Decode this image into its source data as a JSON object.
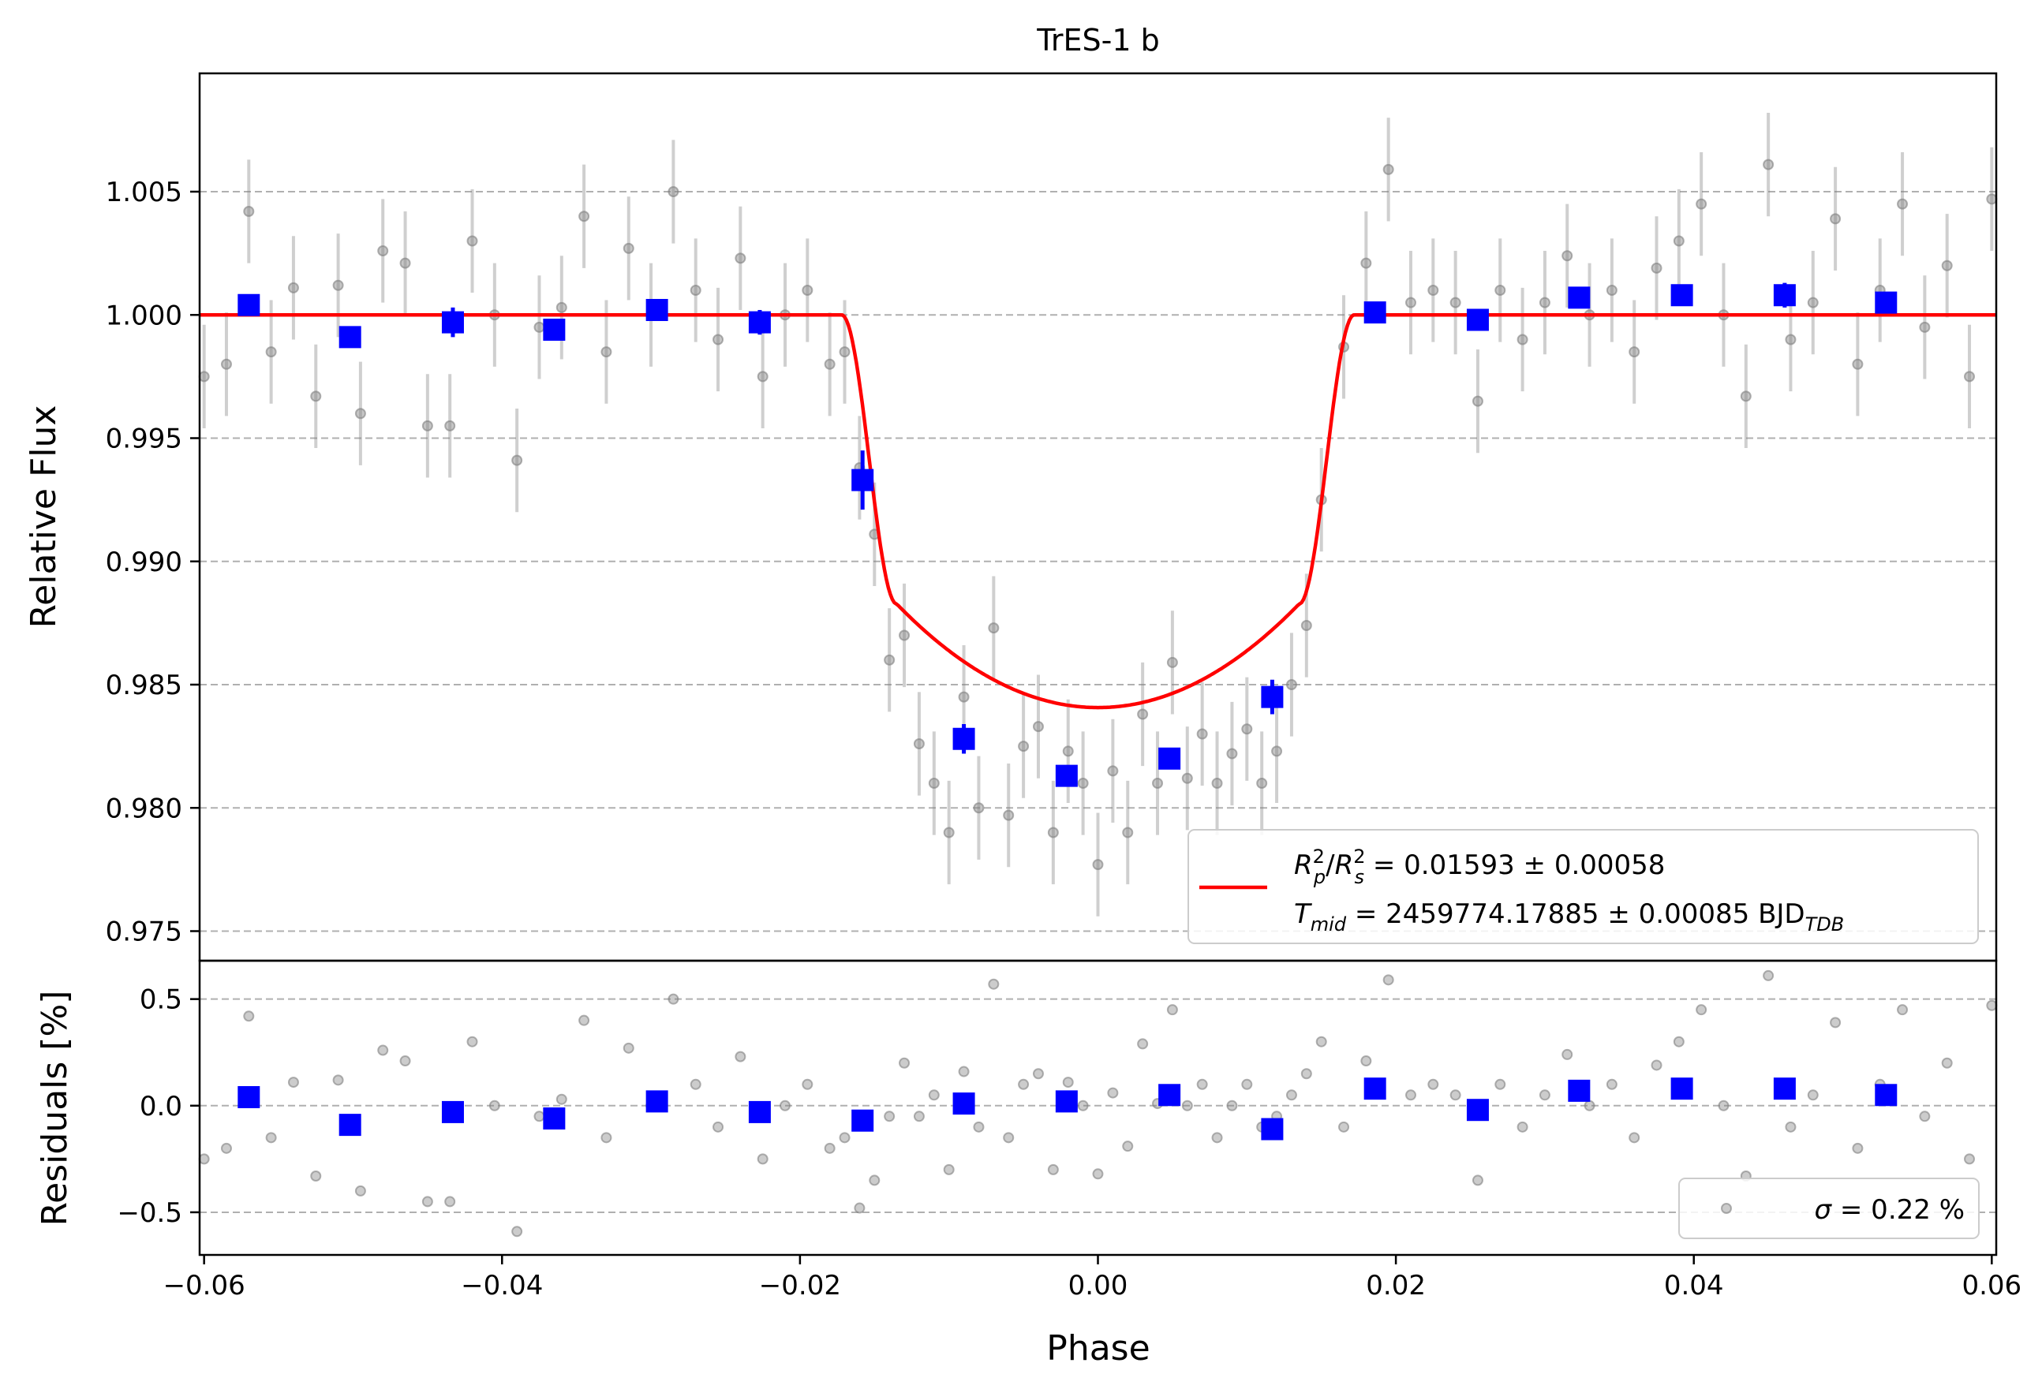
{
  "chart_data": [
    {
      "type": "scatter",
      "title": "TrES-1 b",
      "ylabel": "Relative Flux",
      "xlim": [
        -0.0603,
        0.0603
      ],
      "ylim": [
        0.9738,
        1.0098
      ],
      "grid": "horizontal dashed",
      "xticks": [
        -0.06,
        -0.04,
        -0.02,
        0.0,
        0.02,
        0.04,
        0.06
      ],
      "xtick_labels": [
        "−0.06",
        "−0.04",
        "−0.02",
        "0.00",
        "0.02",
        "0.04",
        "0.06"
      ],
      "yticks": [
        0.975,
        0.98,
        0.985,
        0.99,
        0.995,
        1.0,
        1.005
      ],
      "ytick_labels": [
        "0.975",
        "0.980",
        "0.985",
        "0.990",
        "0.995",
        "1.000",
        "1.005"
      ],
      "legend_position": "lower-right",
      "legend": {
        "line1_a": "R",
        "line1_a_sup": "2",
        "line1_a_sub": "p",
        "line1_sep": "/",
        "line1_b": "R",
        "line1_b_sup": "2",
        "line1_b_sub": "s",
        "line1_value": " = 0.01593 ± 0.00058",
        "line2_a": "T",
        "line2_a_sub": "mid",
        "line2_value": " = 2459774.17885 ± 0.00085 BJD",
        "line2_value_sub": "TDB"
      },
      "model": {
        "color": "#ff0000",
        "depth": 0.01593,
        "baseline": 1.0,
        "t_contact_outer": 0.0172,
        "t_contact_inner": 0.0135,
        "limb_curvature": 0.0042
      },
      "raw_points": {
        "color": "#808080",
        "x": [
          -0.06,
          -0.0585,
          -0.057,
          -0.0555,
          -0.054,
          -0.0525,
          -0.051,
          -0.0495,
          -0.048,
          -0.0465,
          -0.045,
          -0.0435,
          -0.042,
          -0.0405,
          -0.039,
          -0.0375,
          -0.036,
          -0.0345,
          -0.033,
          -0.0315,
          -0.03,
          -0.0285,
          -0.027,
          -0.0255,
          -0.024,
          -0.0225,
          -0.021,
          -0.0195,
          -0.018,
          -0.017,
          -0.016,
          -0.015,
          -0.014,
          -0.013,
          -0.012,
          -0.011,
          -0.01,
          -0.009,
          -0.008,
          -0.007,
          -0.006,
          -0.005,
          -0.004,
          -0.003,
          -0.002,
          -0.001,
          0.0,
          0.001,
          0.002,
          0.003,
          0.004,
          0.005,
          0.006,
          0.007,
          0.008,
          0.009,
          0.01,
          0.011,
          0.012,
          0.013,
          0.014,
          0.015,
          0.0165,
          0.018,
          0.0195,
          0.021,
          0.0225,
          0.024,
          0.0255,
          0.027,
          0.0285,
          0.03,
          0.0315,
          0.033,
          0.0345,
          0.036,
          0.0375,
          0.039,
          0.0405,
          0.042,
          0.0435,
          0.045,
          0.0465,
          0.048,
          0.0495,
          0.051,
          0.0525,
          0.054,
          0.0555,
          0.057,
          0.0585,
          0.06
        ],
        "y": [
          0.9975,
          0.998,
          1.0042,
          0.9985,
          1.0011,
          0.9967,
          1.0012,
          0.996,
          1.0026,
          1.0021,
          0.9955,
          0.9955,
          1.003,
          1.0,
          0.9941,
          0.9995,
          1.0003,
          1.004,
          0.9985,
          1.0027,
          1.0,
          1.005,
          1.001,
          0.999,
          1.0023,
          0.9975,
          1.0,
          1.001,
          0.998,
          0.9985,
          0.9938,
          0.9911,
          0.986,
          0.987,
          0.9826,
          0.981,
          0.979,
          0.9845,
          0.98,
          0.9873,
          0.9797,
          0.9825,
          0.9833,
          0.979,
          0.9823,
          0.981,
          0.9777,
          0.9815,
          0.979,
          0.9838,
          0.981,
          0.9859,
          0.9812,
          0.983,
          0.981,
          0.9822,
          0.9832,
          0.981,
          0.9823,
          0.985,
          0.9874,
          0.9925,
          0.9987,
          1.0021,
          1.0059,
          1.0005,
          1.001,
          1.0005,
          0.9965,
          1.001,
          0.999,
          1.0005,
          1.0024,
          1.0,
          1.001,
          0.9985,
          1.0019,
          1.003,
          1.0045,
          1.0,
          0.9967,
          1.0061,
          0.999,
          1.0005,
          1.0039,
          0.998,
          1.001,
          1.0045,
          0.9995,
          1.002,
          0.9975,
          1.0047
        ],
        "err": 0.0021
      },
      "binned_points": {
        "color": "#0000ff",
        "x": [
          -0.057,
          -0.0502,
          -0.0433,
          -0.0365,
          -0.0296,
          -0.0227,
          -0.0158,
          -0.009,
          -0.0021,
          0.0048,
          0.0117,
          0.0186,
          0.0255,
          0.0323,
          0.0392,
          0.0461,
          0.0529
        ],
        "y": [
          1.0004,
          0.9991,
          0.9997,
          0.9994,
          1.0002,
          0.9997,
          0.9933,
          0.9828,
          0.9813,
          0.982,
          0.9845,
          1.0001,
          0.9998,
          1.0007,
          1.0008,
          1.0008,
          1.0005
        ],
        "err": [
          0.0004,
          0.0004,
          0.0006,
          0.0004,
          0.0004,
          0.0005,
          0.0012,
          0.0006,
          0.0004,
          0.0004,
          0.0007,
          0.0004,
          0.0004,
          0.0004,
          0.0004,
          0.0005,
          0.0004
        ]
      }
    },
    {
      "type": "scatter",
      "xlabel": "Phase",
      "ylabel": "Residuals [%]",
      "xlim": [
        -0.0603,
        0.0603
      ],
      "ylim": [
        -0.7,
        0.68
      ],
      "grid": "horizontal dashed",
      "xticks": [
        -0.06,
        -0.04,
        -0.02,
        0.0,
        0.02,
        0.04,
        0.06
      ],
      "xtick_labels": [
        "−0.06",
        "−0.04",
        "−0.02",
        "0.00",
        "0.02",
        "0.04",
        "0.06"
      ],
      "yticks": [
        -0.5,
        0.0,
        0.5
      ],
      "ytick_labels": [
        "−0.5",
        "0.0",
        "0.5"
      ],
      "legend_position": "lower-right",
      "legend": {
        "symbol": "σ",
        "text": " = 0.22 %"
      },
      "raw_points": {
        "color": "#808080",
        "x": [
          -0.06,
          -0.0585,
          -0.057,
          -0.0555,
          -0.054,
          -0.0525,
          -0.051,
          -0.0495,
          -0.048,
          -0.0465,
          -0.045,
          -0.0435,
          -0.042,
          -0.0405,
          -0.039,
          -0.0375,
          -0.036,
          -0.0345,
          -0.033,
          -0.0315,
          -0.03,
          -0.0285,
          -0.027,
          -0.0255,
          -0.024,
          -0.0225,
          -0.021,
          -0.0195,
          -0.018,
          -0.017,
          -0.016,
          -0.015,
          -0.014,
          -0.013,
          -0.012,
          -0.011,
          -0.01,
          -0.009,
          -0.008,
          -0.007,
          -0.006,
          -0.005,
          -0.004,
          -0.003,
          -0.002,
          -0.001,
          0.0,
          0.001,
          0.002,
          0.003,
          0.004,
          0.005,
          0.006,
          0.007,
          0.008,
          0.009,
          0.01,
          0.011,
          0.012,
          0.013,
          0.014,
          0.015,
          0.0165,
          0.018,
          0.0195,
          0.021,
          0.0225,
          0.024,
          0.0255,
          0.027,
          0.0285,
          0.03,
          0.0315,
          0.033,
          0.0345,
          0.036,
          0.0375,
          0.039,
          0.0405,
          0.042,
          0.0435,
          0.045,
          0.0465,
          0.048,
          0.0495,
          0.051,
          0.0525,
          0.054,
          0.0555,
          0.057,
          0.0585,
          0.06
        ],
        "y": [
          -0.25,
          -0.2,
          0.42,
          -0.15,
          0.11,
          -0.33,
          0.12,
          -0.4,
          0.26,
          0.21,
          -0.45,
          -0.45,
          0.3,
          0.0,
          -0.59,
          -0.05,
          0.03,
          0.4,
          -0.15,
          0.27,
          0.0,
          0.5,
          0.1,
          -0.1,
          0.23,
          -0.25,
          0.0,
          0.1,
          -0.2,
          -0.15,
          -0.48,
          -0.35,
          -0.05,
          0.2,
          -0.05,
          0.05,
          -0.3,
          0.16,
          -0.1,
          0.57,
          -0.15,
          0.1,
          0.15,
          -0.3,
          0.11,
          0.0,
          -0.32,
          0.06,
          -0.19,
          0.29,
          0.01,
          0.45,
          0.0,
          0.1,
          -0.15,
          0.0,
          0.1,
          -0.1,
          -0.05,
          0.05,
          0.15,
          0.3,
          -0.1,
          0.21,
          0.59,
          0.05,
          0.1,
          0.05,
          -0.35,
          0.1,
          -0.1,
          0.05,
          0.24,
          0.0,
          0.1,
          -0.15,
          0.19,
          0.3,
          0.45,
          0.0,
          -0.33,
          0.61,
          -0.1,
          0.05,
          0.39,
          -0.2,
          0.1,
          0.45,
          -0.05,
          0.2,
          -0.25,
          0.47
        ]
      },
      "binned_points": {
        "color": "#0000ff",
        "x": [
          -0.057,
          -0.0502,
          -0.0433,
          -0.0365,
          -0.0296,
          -0.0227,
          -0.0158,
          -0.009,
          -0.0021,
          0.0048,
          0.0117,
          0.0186,
          0.0255,
          0.0323,
          0.0392,
          0.0461,
          0.0529
        ],
        "y": [
          0.04,
          -0.09,
          -0.03,
          -0.06,
          0.02,
          -0.03,
          -0.07,
          0.01,
          0.02,
          0.05,
          -0.11,
          0.08,
          -0.02,
          0.07,
          0.08,
          0.08,
          0.05
        ]
      }
    }
  ]
}
